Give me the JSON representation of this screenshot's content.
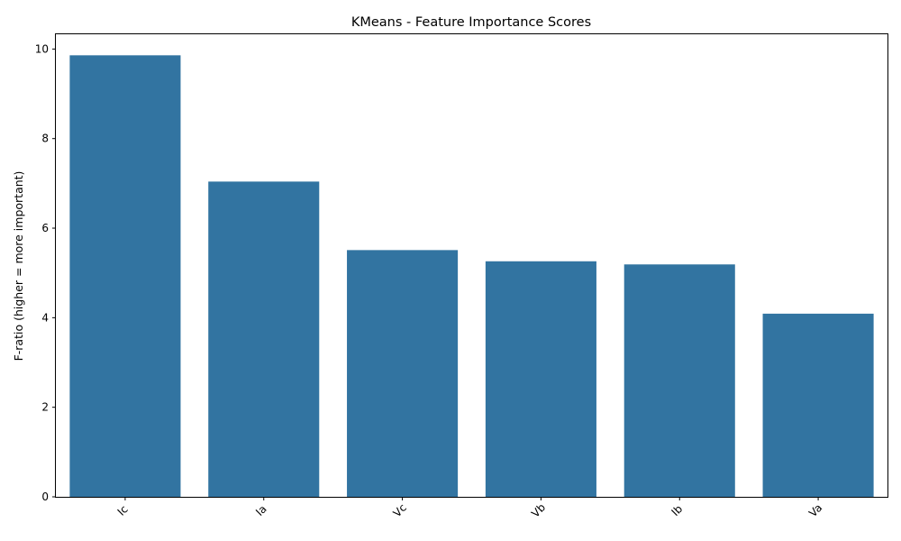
{
  "chart_data": {
    "type": "bar",
    "title": "KMeans - Feature Importance Scores",
    "xlabel": "",
    "ylabel": "F-ratio (higher = more important)",
    "categories": [
      "Ic",
      "Ia",
      "Vc",
      "Vb",
      "Ib",
      "Va"
    ],
    "values": [
      9.86,
      7.04,
      5.51,
      5.26,
      5.19,
      4.09
    ],
    "ylim": [
      0,
      10.35
    ],
    "yticks": [
      0,
      2,
      4,
      6,
      8,
      10
    ],
    "bar_color": "#3274a1",
    "xtick_rotation": 45,
    "grid": false,
    "legend": false
  }
}
